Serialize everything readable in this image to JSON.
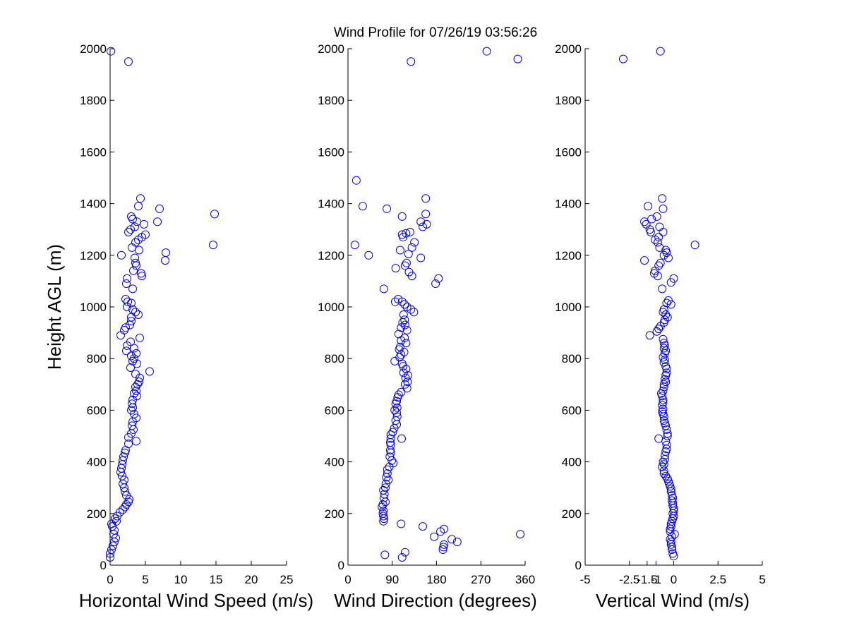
{
  "figure": {
    "title": "Wind Profile for  07/26/19 03:56:26"
  },
  "chart_data": [
    {
      "type": "scatter",
      "xlabel": "Horizontal Wind Speed (m/s)",
      "ylabel": "Height AGL (m)",
      "xlim": [
        0,
        25
      ],
      "ylim": [
        0,
        2000
      ],
      "xticks": [
        "0",
        "5",
        "10",
        "15",
        "20",
        "25"
      ],
      "yticks": [
        "0",
        "200",
        "400",
        "600",
        "800",
        "1000",
        "1200",
        "1400",
        "1600",
        "1800",
        "2000"
      ],
      "marker_color": "#0000ff",
      "points": [
        [
          0.1,
          1990
        ],
        [
          2.6,
          1950
        ],
        [
          4.3,
          1420
        ],
        [
          7.0,
          1380
        ],
        [
          4.0,
          1390
        ],
        [
          14.8,
          1360
        ],
        [
          3.0,
          1350
        ],
        [
          3.2,
          1340
        ],
        [
          3.8,
          1330
        ],
        [
          6.7,
          1330
        ],
        [
          4.8,
          1320
        ],
        [
          3.5,
          1310
        ],
        [
          2.9,
          1300
        ],
        [
          2.6,
          1290
        ],
        [
          5.0,
          1280
        ],
        [
          4.5,
          1270
        ],
        [
          4.0,
          1260
        ],
        [
          3.6,
          1250
        ],
        [
          14.6,
          1240
        ],
        [
          3.1,
          1230
        ],
        [
          4.1,
          1220
        ],
        [
          7.9,
          1210
        ],
        [
          1.6,
          1200
        ],
        [
          3.5,
          1190
        ],
        [
          7.8,
          1180
        ],
        [
          3.6,
          1170
        ],
        [
          3.7,
          1160
        ],
        [
          3.3,
          1140
        ],
        [
          4.4,
          1130
        ],
        [
          4.5,
          1120
        ],
        [
          2.4,
          1110
        ],
        [
          2.3,
          1090
        ],
        [
          3.2,
          1070
        ],
        [
          2.2,
          1030
        ],
        [
          2.5,
          1020
        ],
        [
          3.0,
          1015
        ],
        [
          2.4,
          1000
        ],
        [
          3.2,
          990
        ],
        [
          3.6,
          980
        ],
        [
          4.0,
          970
        ],
        [
          3.0,
          960
        ],
        [
          3.0,
          945
        ],
        [
          2.8,
          930
        ],
        [
          2.2,
          920
        ],
        [
          2.0,
          910
        ],
        [
          1.5,
          890
        ],
        [
          4.2,
          880
        ],
        [
          2.9,
          865
        ],
        [
          2.4,
          850
        ],
        [
          3.4,
          840
        ],
        [
          2.3,
          830
        ],
        [
          3.7,
          820
        ],
        [
          3.0,
          810
        ],
        [
          3.4,
          800
        ],
        [
          3.2,
          790
        ],
        [
          3.8,
          780
        ],
        [
          2.9,
          765
        ],
        [
          5.6,
          750
        ],
        [
          3.6,
          740
        ],
        [
          4.2,
          725
        ],
        [
          4.1,
          710
        ],
        [
          3.9,
          700
        ],
        [
          3.6,
          690
        ],
        [
          3.7,
          675
        ],
        [
          3.4,
          665
        ],
        [
          3.8,
          655
        ],
        [
          3.2,
          640
        ],
        [
          3.1,
          625
        ],
        [
          3.2,
          610
        ],
        [
          3.0,
          600
        ],
        [
          3.4,
          585
        ],
        [
          3.7,
          570
        ],
        [
          3.2,
          555
        ],
        [
          3.1,
          540
        ],
        [
          3.3,
          525
        ],
        [
          3.0,
          510
        ],
        [
          2.6,
          495
        ],
        [
          3.7,
          480
        ],
        [
          2.6,
          470
        ],
        [
          2.2,
          445
        ],
        [
          2.1,
          435
        ],
        [
          1.9,
          420
        ],
        [
          1.8,
          405
        ],
        [
          1.7,
          390
        ],
        [
          1.6,
          375
        ],
        [
          1.5,
          360
        ],
        [
          1.7,
          345
        ],
        [
          2.0,
          330
        ],
        [
          1.8,
          315
        ],
        [
          2.0,
          300
        ],
        [
          2.1,
          285
        ],
        [
          2.3,
          270
        ],
        [
          2.7,
          255
        ],
        [
          2.6,
          245
        ],
        [
          2.3,
          235
        ],
        [
          2.1,
          225
        ],
        [
          1.8,
          215
        ],
        [
          1.4,
          205
        ],
        [
          1.0,
          190
        ],
        [
          0.7,
          180
        ],
        [
          0.9,
          170
        ],
        [
          0.2,
          160
        ],
        [
          0.3,
          150
        ],
        [
          0.6,
          135
        ],
        [
          0.5,
          120
        ],
        [
          0.8,
          105
        ],
        [
          0.6,
          90
        ],
        [
          0.4,
          75
        ],
        [
          0.2,
          60
        ],
        [
          0.0,
          45
        ],
        [
          0.0,
          30
        ]
      ]
    },
    {
      "type": "scatter",
      "xlabel": "Wind Direction (degrees)",
      "xlim": [
        0,
        360
      ],
      "ylim": [
        0,
        2000
      ],
      "xticks": [
        "0",
        "90",
        "180",
        "270",
        "360"
      ],
      "yticks": [
        "0",
        "200",
        "400",
        "600",
        "800",
        "1000",
        "1200",
        "1400",
        "1600",
        "1800",
        "2000"
      ],
      "marker_color": "#0000ff",
      "points": [
        [
          282,
          1990
        ],
        [
          345,
          1960
        ],
        [
          128,
          1950
        ],
        [
          17,
          1490
        ],
        [
          158,
          1420
        ],
        [
          30,
          1390
        ],
        [
          79,
          1380
        ],
        [
          158,
          1360
        ],
        [
          110,
          1350
        ],
        [
          148,
          1330
        ],
        [
          160,
          1320
        ],
        [
          152,
          1310
        ],
        [
          126,
          1290
        ],
        [
          118,
          1285
        ],
        [
          110,
          1280
        ],
        [
          112,
          1270
        ],
        [
          135,
          1250
        ],
        [
          14,
          1240
        ],
        [
          130,
          1230
        ],
        [
          106,
          1220
        ],
        [
          42,
          1200
        ],
        [
          123,
          1205
        ],
        [
          148,
          1190
        ],
        [
          119,
          1170
        ],
        [
          116,
          1160
        ],
        [
          97,
          1150
        ],
        [
          124,
          1135
        ],
        [
          130,
          1120
        ],
        [
          184,
          1110
        ],
        [
          178,
          1090
        ],
        [
          73,
          1070
        ],
        [
          110,
          1020
        ],
        [
          96,
          1020
        ],
        [
          102,
          1030
        ],
        [
          115,
          1010
        ],
        [
          120,
          1000
        ],
        [
          128,
          990
        ],
        [
          134,
          980
        ],
        [
          113,
          970
        ],
        [
          115,
          950
        ],
        [
          111,
          940
        ],
        [
          116,
          930
        ],
        [
          108,
          920
        ],
        [
          120,
          910
        ],
        [
          103,
          895
        ],
        [
          115,
          880
        ],
        [
          108,
          870
        ],
        [
          118,
          860
        ],
        [
          106,
          845
        ],
        [
          104,
          835
        ],
        [
          114,
          825
        ],
        [
          108,
          815
        ],
        [
          105,
          805
        ],
        [
          95,
          790
        ],
        [
          110,
          780
        ],
        [
          112,
          770
        ],
        [
          118,
          760
        ],
        [
          113,
          745
        ],
        [
          122,
          735
        ],
        [
          117,
          725
        ],
        [
          121,
          710
        ],
        [
          116,
          700
        ],
        [
          120,
          685
        ],
        [
          108,
          670
        ],
        [
          103,
          660
        ],
        [
          101,
          650
        ],
        [
          99,
          635
        ],
        [
          97,
          625
        ],
        [
          100,
          610
        ],
        [
          95,
          600
        ],
        [
          99,
          590
        ],
        [
          100,
          575
        ],
        [
          97,
          560
        ],
        [
          99,
          545
        ],
        [
          94,
          530
        ],
        [
          91,
          515
        ],
        [
          87,
          505
        ],
        [
          87,
          490
        ],
        [
          109,
          490
        ],
        [
          86,
          475
        ],
        [
          87,
          465
        ],
        [
          86,
          445
        ],
        [
          87,
          435
        ],
        [
          85,
          420
        ],
        [
          89,
          405
        ],
        [
          92,
          395
        ],
        [
          84,
          380
        ],
        [
          80,
          370
        ],
        [
          80,
          355
        ],
        [
          78,
          340
        ],
        [
          82,
          330
        ],
        [
          77,
          315
        ],
        [
          76,
          300
        ],
        [
          72,
          290
        ],
        [
          74,
          275
        ],
        [
          73,
          260
        ],
        [
          76,
          245
        ],
        [
          71,
          235
        ],
        [
          69,
          225
        ],
        [
          72,
          210
        ],
        [
          71,
          200
        ],
        [
          72,
          190
        ],
        [
          73,
          180
        ],
        [
          72,
          170
        ],
        [
          108,
          160
        ],
        [
          152,
          150
        ],
        [
          195,
          140
        ],
        [
          188,
          130
        ],
        [
          350,
          120
        ],
        [
          175,
          110
        ],
        [
          211,
          100
        ],
        [
          222,
          90
        ],
        [
          195,
          80
        ],
        [
          194,
          70
        ],
        [
          193,
          60
        ],
        [
          116,
          50
        ],
        [
          75,
          40
        ],
        [
          110,
          30
        ]
      ]
    },
    {
      "type": "scatter",
      "xlabel": "Vertical Wind (m/s)",
      "xlim": [
        -5,
        5
      ],
      "ylim": [
        0,
        2000
      ],
      "xticks": [
        "-5",
        "-2.5",
        "-1.5",
        "-1",
        "0",
        "2.5",
        "5"
      ],
      "yticks": [
        "0",
        "200",
        "400",
        "600",
        "800",
        "1000",
        "1200",
        "1400",
        "1600",
        "1800",
        "2000"
      ],
      "marker_color": "#0000ff",
      "points": [
        [
          -0.75,
          1990
        ],
        [
          -2.85,
          1960
        ],
        [
          -0.65,
          1420
        ],
        [
          -1.45,
          1390
        ],
        [
          -0.6,
          1380
        ],
        [
          -0.95,
          1350
        ],
        [
          -1.25,
          1340
        ],
        [
          -1.65,
          1330
        ],
        [
          -1.55,
          1320
        ],
        [
          -0.8,
          1310
        ],
        [
          -1.35,
          1300
        ],
        [
          -1.3,
          1290
        ],
        [
          -0.6,
          1290
        ],
        [
          -0.85,
          1270
        ],
        [
          -1.05,
          1260
        ],
        [
          -0.9,
          1250
        ],
        [
          1.2,
          1240
        ],
        [
          -0.8,
          1230
        ],
        [
          -0.45,
          1220
        ],
        [
          -0.4,
          1210
        ],
        [
          -0.55,
          1200
        ],
        [
          -0.3,
          1190
        ],
        [
          -1.65,
          1180
        ],
        [
          -0.75,
          1170
        ],
        [
          -0.85,
          1160
        ],
        [
          -1.05,
          1140
        ],
        [
          -1.1,
          1130
        ],
        [
          -0.9,
          1120
        ],
        [
          0.0,
          1110
        ],
        [
          -0.15,
          1095
        ],
        [
          -0.65,
          1070
        ],
        [
          -0.3,
          1025
        ],
        [
          -0.4,
          1015
        ],
        [
          -0.15,
          1010
        ],
        [
          -0.55,
          990
        ],
        [
          -0.6,
          980
        ],
        [
          -0.45,
          970
        ],
        [
          -0.35,
          960
        ],
        [
          -0.5,
          950
        ],
        [
          -0.55,
          940
        ],
        [
          -0.75,
          925
        ],
        [
          -0.85,
          915
        ],
        [
          -0.95,
          905
        ],
        [
          -1.35,
          890
        ],
        [
          -0.6,
          875
        ],
        [
          -0.55,
          860
        ],
        [
          -0.5,
          850
        ],
        [
          -0.55,
          840
        ],
        [
          -0.45,
          830
        ],
        [
          -0.5,
          820
        ],
        [
          -0.6,
          805
        ],
        [
          -0.5,
          795
        ],
        [
          -0.55,
          785
        ],
        [
          -0.45,
          770
        ],
        [
          -0.4,
          760
        ],
        [
          -0.4,
          745
        ],
        [
          -0.45,
          735
        ],
        [
          -0.5,
          720
        ],
        [
          -0.45,
          710
        ],
        [
          -0.55,
          700
        ],
        [
          -0.55,
          690
        ],
        [
          -0.6,
          675
        ],
        [
          -0.7,
          665
        ],
        [
          -0.65,
          655
        ],
        [
          -0.6,
          640
        ],
        [
          -0.6,
          630
        ],
        [
          -0.65,
          620
        ],
        [
          -0.6,
          605
        ],
        [
          -0.65,
          595
        ],
        [
          -0.6,
          585
        ],
        [
          -0.55,
          575
        ],
        [
          -0.55,
          560
        ],
        [
          -0.5,
          550
        ],
        [
          -0.45,
          540
        ],
        [
          -0.4,
          525
        ],
        [
          -0.35,
          510
        ],
        [
          -0.35,
          500
        ],
        [
          -0.85,
          490
        ],
        [
          -0.45,
          480
        ],
        [
          -0.4,
          465
        ],
        [
          -0.4,
          450
        ],
        [
          -0.45,
          440
        ],
        [
          -0.5,
          425
        ],
        [
          -0.5,
          410
        ],
        [
          -0.6,
          400
        ],
        [
          -0.55,
          390
        ],
        [
          -0.65,
          380
        ],
        [
          -0.55,
          365
        ],
        [
          -0.55,
          355
        ],
        [
          -0.45,
          345
        ],
        [
          -0.35,
          335
        ],
        [
          -0.3,
          325
        ],
        [
          -0.25,
          315
        ],
        [
          -0.2,
          305
        ],
        [
          -0.15,
          295
        ],
        [
          -0.15,
          285
        ],
        [
          -0.1,
          270
        ],
        [
          -0.05,
          260
        ],
        [
          -0.1,
          250
        ],
        [
          -0.05,
          240
        ],
        [
          -0.05,
          230
        ],
        [
          0.0,
          220
        ],
        [
          0.0,
          210
        ],
        [
          -0.05,
          200
        ],
        [
          0.0,
          190
        ],
        [
          -0.05,
          180
        ],
        [
          -0.1,
          170
        ],
        [
          -0.15,
          160
        ],
        [
          -0.15,
          150
        ],
        [
          -0.2,
          140
        ],
        [
          -0.2,
          130
        ],
        [
          0.05,
          120
        ],
        [
          -0.1,
          110
        ],
        [
          -0.2,
          100
        ],
        [
          -0.15,
          90
        ],
        [
          -0.15,
          80
        ],
        [
          -0.1,
          70
        ],
        [
          -0.1,
          60
        ],
        [
          -0.05,
          45
        ],
        [
          0.0,
          35
        ]
      ]
    }
  ]
}
